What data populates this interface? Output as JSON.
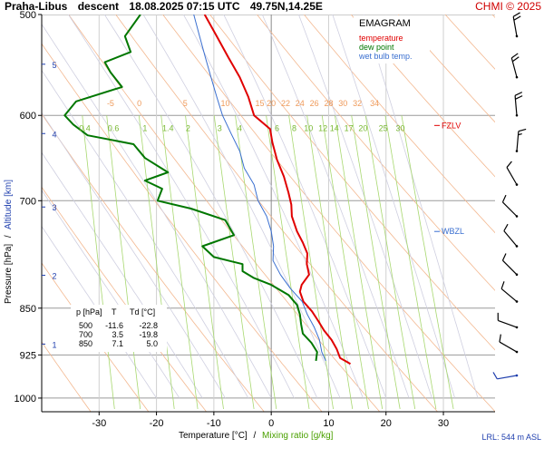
{
  "header": {
    "station": "Praha-Libus",
    "mode": "descent",
    "datetime": "18.08.2025 07:15 UTC",
    "coords": "49.75N,14.25E",
    "copyright": "CHMI © 2025"
  },
  "legend": {
    "title": "EMAGRAM",
    "items": [
      {
        "label": "temperature",
        "color": "#e00000"
      },
      {
        "label": "dew point",
        "color": "#007700"
      },
      {
        "label": "wet bulb temp.",
        "color": "#3a6fd0"
      }
    ]
  },
  "table": {
    "headers": [
      "p [hPa]",
      "T",
      "Td [°C]"
    ],
    "rows": [
      [
        "500",
        "-11.6",
        "-22.8"
      ],
      [
        "700",
        "3.5",
        "-19.8"
      ],
      [
        "850",
        "7.1",
        "5.0"
      ]
    ]
  },
  "labels": {
    "fzlv": "FZLV",
    "wbzl": "WBZL",
    "lrl": "LRL: 544 m ASL",
    "xlabel_temp": "Temperature [°C]",
    "xlabel_sep": "/",
    "xlabel_mix": "Mixing ratio [g/kg]",
    "ylabel_p": "Pressure [hPa]",
    "ylabel_sep": "/",
    "ylabel_alt": "Altitude [km]"
  },
  "chart_data": {
    "type": "line",
    "title": "Praha-Libus descent 18.08.2025 07:15 UTC 49.75N,14.25E",
    "xlabel": "Temperature [°C] / Mixing ratio [g/kg]",
    "ylabel": "Pressure [hPa] / Altitude [km]",
    "xlim": [
      -40,
      39
    ],
    "plim": [
      500,
      1025
    ],
    "y_scale": "log",
    "x_ticks": [
      -30,
      -20,
      -10,
      0,
      10,
      20,
      30
    ],
    "p_ticks": [
      500,
      600,
      700,
      850,
      925,
      1000
    ],
    "alt_ticks_km": [
      {
        "km": "1",
        "p": 907
      },
      {
        "km": "2",
        "p": 801
      },
      {
        "km": "3",
        "p": 708
      },
      {
        "km": "4",
        "p": 620
      },
      {
        "km": "5",
        "p": 547
      }
    ],
    "isotherm_labels": [
      "-5",
      "0",
      "5",
      "10",
      "15",
      "20",
      "22",
      "24",
      "26",
      "28",
      "30",
      "32",
      "34"
    ],
    "isotherm_label_x": [
      -28,
      -23,
      -15,
      -8,
      -2,
      0,
      2.5,
      5,
      7.5,
      10,
      12.5,
      15,
      18
    ],
    "isotherm_label_p": 590,
    "mixing_labels": [
      "0.4",
      "0.6",
      "1",
      "1.4",
      "2",
      "3",
      "4",
      "6",
      "8",
      "10",
      "12",
      "14",
      "17",
      "20",
      "25",
      "30"
    ],
    "mixing_label_x": [
      -32.5,
      -27.5,
      -22,
      -18,
      -14.5,
      -9,
      -5.5,
      1,
      4,
      6.5,
      9,
      11,
      13.5,
      16,
      19.5,
      22.5
    ],
    "mixing_label_p": 617,
    "fzlv_p": 611,
    "wbzl_p": 740,
    "series": [
      {
        "name": "temperature",
        "color": "#e00000",
        "p": [
          500,
          520,
          540,
          560,
          580,
          600,
          615,
          630,
          650,
          670,
          690,
          705,
          720,
          740,
          755,
          770,
          785,
          800,
          815,
          825,
          840,
          855,
          870,
          885,
          900,
          915,
          930,
          940
        ],
        "t": [
          -11.6,
          -9.5,
          -7.5,
          -5.5,
          -4,
          -3,
          -0.2,
          0.2,
          1,
          2.2,
          3,
          3.5,
          3.6,
          4.5,
          5.5,
          6.3,
          6.2,
          6.6,
          5.3,
          5,
          5.6,
          7.1,
          8.2,
          9.2,
          10.5,
          11.4,
          12,
          13.8
        ]
      },
      {
        "name": "dew point",
        "color": "#007700",
        "p": [
          500,
          520,
          535,
          545,
          555,
          570,
          585,
          600,
          610,
          622,
          632,
          648,
          665,
          675,
          685,
          700,
          710,
          725,
          745,
          760,
          775,
          785,
          795,
          805,
          815,
          830,
          845,
          860,
          875,
          890,
          905,
          920,
          935
        ],
        "t": [
          -22.8,
          -25.5,
          -24.5,
          -29,
          -28,
          -26,
          -34,
          -36,
          -34.5,
          -32,
          -24,
          -22,
          -18,
          -22,
          -19,
          -19.8,
          -14,
          -8,
          -6.5,
          -12,
          -10,
          -5,
          -5,
          -3,
          0,
          3,
          4.5,
          5,
          5.2,
          5.5,
          7,
          8,
          7.8
        ]
      },
      {
        "name": "wet bulb temp.",
        "color": "#3a6fd0",
        "p": [
          500,
          520,
          540,
          560,
          580,
          600,
          620,
          640,
          660,
          680,
          700,
          720,
          740,
          760,
          780,
          800,
          820,
          840,
          860,
          880,
          900,
          920,
          935
        ],
        "t": [
          -13.5,
          -12.5,
          -11.5,
          -10.5,
          -9.5,
          -8.5,
          -7,
          -5.5,
          -4.7,
          -3,
          -2.3,
          -0.8,
          0,
          0.4,
          0.3,
          1.6,
          3.3,
          5.4,
          6.3,
          7.5,
          8.4,
          8.8,
          9.5
        ]
      }
    ],
    "wind_barbs": [
      {
        "p": 520,
        "dir": 350,
        "kt": 20
      },
      {
        "p": 560,
        "dir": 345,
        "kt": 20
      },
      {
        "p": 600,
        "dir": 355,
        "kt": 20
      },
      {
        "p": 640,
        "dir": 5,
        "kt": 15
      },
      {
        "p": 680,
        "dir": 330,
        "kt": 10
      },
      {
        "p": 720,
        "dir": 315,
        "kt": 10
      },
      {
        "p": 760,
        "dir": 320,
        "kt": 10
      },
      {
        "p": 800,
        "dir": 315,
        "kt": 10
      },
      {
        "p": 840,
        "dir": 310,
        "kt": 10
      },
      {
        "p": 880,
        "dir": 290,
        "kt": 10
      },
      {
        "p": 920,
        "dir": 300,
        "kt": 10
      },
      {
        "p": 960,
        "dir": 260,
        "kt": 10
      }
    ]
  }
}
